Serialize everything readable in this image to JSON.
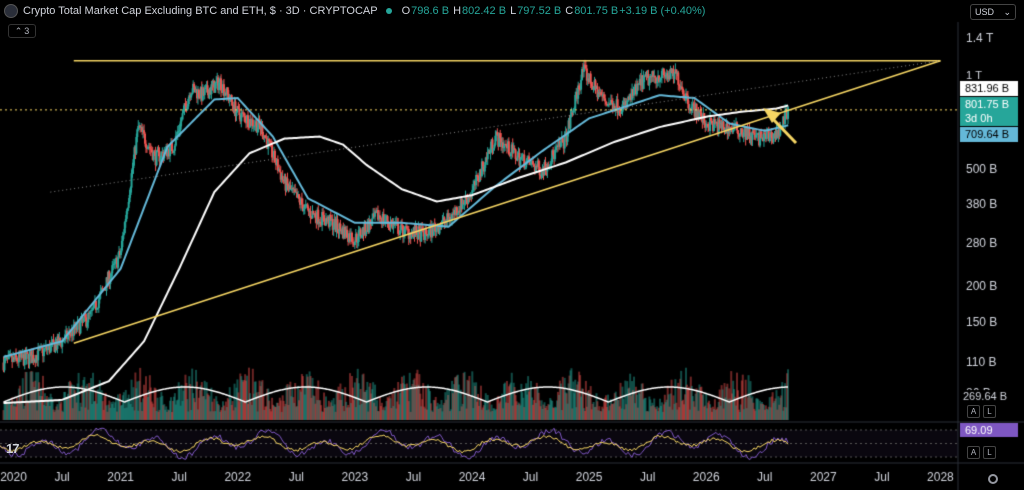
{
  "header": {
    "title": "Crypto Total Market Cap Excluding BTC and ETH, $ · 3D · CRYPTOCAP",
    "ohlc": [
      {
        "k": "O",
        "v": "798.6 B"
      },
      {
        "k": "H",
        "v": "802.42 B"
      },
      {
        "k": "L",
        "v": "797.52 B"
      },
      {
        "k": "C",
        "v": "801.75 B"
      },
      {
        "k": "",
        "v": "+3.19 B (+0.40%)"
      }
    ]
  },
  "ui": {
    "currency": "USD",
    "indicators_count": "3",
    "scale_auto": "A",
    "scale_log": "L",
    "tv_logo": "17"
  },
  "colors": {
    "up": "#26a69a",
    "down": "#ef5350",
    "trend": "#f5d563",
    "ma_fast": "#64b8d8",
    "ma_slow": "#ffffff",
    "rsi": "#7e57c2",
    "rsi_ma": "#f5d563"
  },
  "chart_data": {
    "type": "line",
    "y_scale": "log",
    "price_ticks": [
      "1.4 T",
      "1 T",
      "500 B",
      "380 B",
      "280 B",
      "200 B",
      "150 B",
      "110 B",
      "86 B"
    ],
    "time_ticks": [
      "2020",
      "Jul",
      "2021",
      "Jul",
      "2022",
      "Jul",
      "2023",
      "Jul",
      "2024",
      "Jul",
      "2025",
      "Jul",
      "2026",
      "Jul",
      "2027",
      "Jul",
      "2028"
    ],
    "x_range": [
      "2020",
      "2028"
    ],
    "price_labels": [
      {
        "text": "831.96 B",
        "value": 831.96,
        "bg": "#ffffff",
        "fg": "#000000"
      },
      {
        "text": "801.75 B",
        "value": 801.75,
        "bg": "#26a69a",
        "fg": "#ffffff"
      },
      {
        "text": "3d 0h",
        "value": 760,
        "bg": "#26a69a",
        "fg": "#ffffff"
      },
      {
        "text": "709.64 B",
        "value": 709.64,
        "bg": "#64b8d8",
        "fg": "#000000"
      }
    ],
    "volume_label": "269.64 B",
    "rsi_label": "69.09",
    "series": [
      {
        "name": "",
        "x": [
          2020.0,
          2020.25,
          2020.5,
          2020.75,
          2021.0,
          2021.15,
          2021.3,
          2021.45,
          2021.6,
          2021.7,
          2021.85,
          2022.0,
          2022.2,
          2022.4,
          2022.6,
          2022.8,
          2023.0,
          2023.2,
          2023.4,
          2023.6,
          2023.8,
          2024.0,
          2024.2,
          2024.4,
          2024.6,
          2024.8,
          2024.95,
          2025.05,
          2025.15,
          2025.3,
          2025.45,
          2025.6,
          2025.75,
          2025.85,
          2026.0,
          2026.15,
          2026.3,
          2026.45,
          2026.6,
          2026.7
        ],
        "values": [
          110,
          115,
          130,
          160,
          260,
          700,
          550,
          600,
          950,
          900,
          1000,
          780,
          700,
          450,
          360,
          330,
          290,
          350,
          310,
          300,
          340,
          420,
          650,
          550,
          500,
          640,
          1100,
          950,
          850,
          820,
          1000,
          1050,
          1050,
          850,
          720,
          700,
          680,
          640,
          660,
          800
        ]
      },
      {
        "name": "",
        "x": [
          2020.0,
          2020.5,
          2021.0,
          2021.4,
          2021.8,
          2022.0,
          2022.3,
          2022.6,
          2023.0,
          2023.4,
          2023.8,
          2024.2,
          2024.6,
          2025.0,
          2025.3,
          2025.6,
          2025.9,
          2026.2,
          2026.5,
          2026.7
        ],
        "values": [
          115,
          130,
          230,
          600,
          870,
          880,
          650,
          400,
          330,
          330,
          320,
          440,
          580,
          750,
          820,
          900,
          880,
          720,
          680,
          710
        ]
      },
      {
        "name": "",
        "x": [
          2020.0,
          2020.5,
          2020.9,
          2021.2,
          2021.5,
          2021.8,
          2022.1,
          2022.4,
          2022.7,
          2022.9,
          2023.1,
          2023.4,
          2023.7,
          2024.0,
          2024.4,
          2024.8,
          2025.2,
          2025.6,
          2026.0,
          2026.3,
          2026.6,
          2026.7
        ],
        "values": [
          80,
          82,
          95,
          130,
          230,
          420,
          570,
          640,
          650,
          610,
          520,
          430,
          390,
          410,
          470,
          530,
          620,
          700,
          760,
          790,
          810,
          830
        ]
      },
      {
        "name": "",
        "x": [
          2020.6,
          2028.0
        ],
        "values": [
          128,
          1180
        ]
      },
      {
        "name": "",
        "x": [
          2020.6,
          2028.0
        ],
        "values": [
          1180,
          1180
        ]
      },
      {
        "name": "",
        "x": [
          2020.4,
          2028.0
        ],
        "values": [
          420,
          1180
        ]
      }
    ]
  }
}
